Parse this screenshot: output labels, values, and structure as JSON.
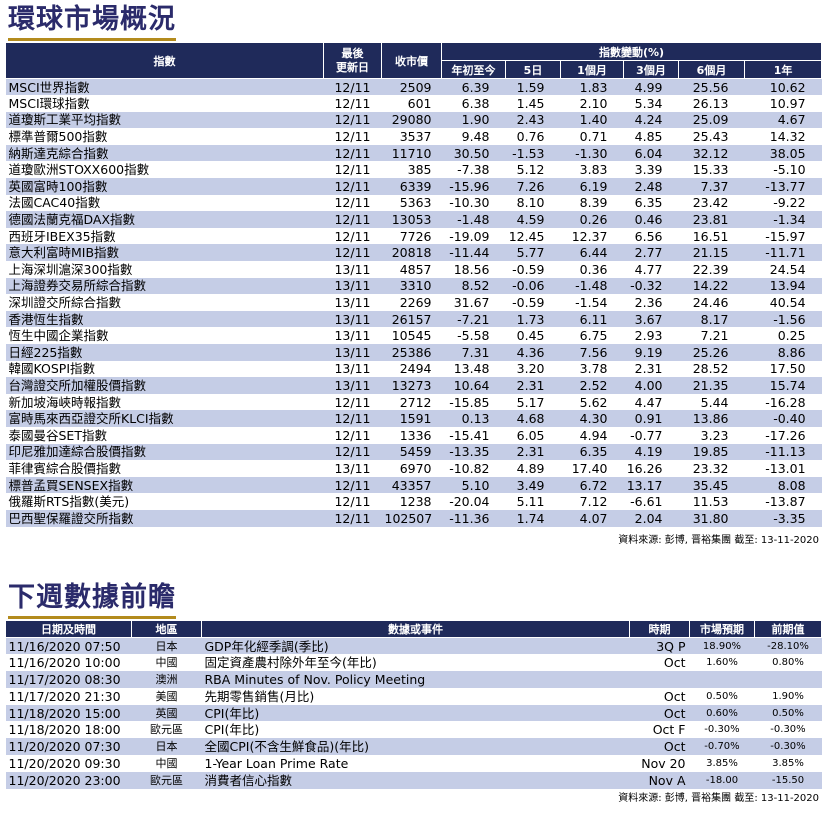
{
  "section1": {
    "title": "環球市場概況",
    "headers": {
      "index": "指數",
      "last_update_1": "最後",
      "last_update_2": "更新日",
      "close": "收市價",
      "change_group": "指數變動(%)",
      "ytd": "年初至今",
      "d5": "5日",
      "m1": "1個月",
      "m3": "3個月",
      "m6": "6個月",
      "y1": "1年"
    },
    "rows": [
      {
        "name": "MSCI世界指數",
        "date": "12/11",
        "close": "2509",
        "ytd": "6.39",
        "d5": "1.59",
        "m1": "1.83",
        "m3": "4.99",
        "m6": "25.56",
        "y1": "10.62"
      },
      {
        "name": "MSCI環球指數",
        "date": "12/11",
        "close": "601",
        "ytd": "6.38",
        "d5": "1.45",
        "m1": "2.10",
        "m3": "5.34",
        "m6": "26.13",
        "y1": "10.97"
      },
      {
        "name": "道瓊斯工業平均指數",
        "date": "12/11",
        "close": "29080",
        "ytd": "1.90",
        "d5": "2.43",
        "m1": "1.40",
        "m3": "4.24",
        "m6": "25.09",
        "y1": "4.67"
      },
      {
        "name": "標準普爾500指數",
        "date": "12/11",
        "close": "3537",
        "ytd": "9.48",
        "d5": "0.76",
        "m1": "0.71",
        "m3": "4.85",
        "m6": "25.43",
        "y1": "14.32"
      },
      {
        "name": "納斯達克綜合指數",
        "date": "12/11",
        "close": "11710",
        "ytd": "30.50",
        "d5": "-1.53",
        "m1": "-1.30",
        "m3": "6.04",
        "m6": "32.12",
        "y1": "38.05"
      },
      {
        "name": "道瓊歐洲STOXX600指數",
        "date": "12/11",
        "close": "385",
        "ytd": "-7.38",
        "d5": "5.12",
        "m1": "3.83",
        "m3": "3.39",
        "m6": "15.33",
        "y1": "-5.10"
      },
      {
        "name": "英國富時100指數",
        "date": "12/11",
        "close": "6339",
        "ytd": "-15.96",
        "d5": "7.26",
        "m1": "6.19",
        "m3": "2.48",
        "m6": "7.37",
        "y1": "-13.77"
      },
      {
        "name": "法國CAC40指數",
        "date": "12/11",
        "close": "5363",
        "ytd": "-10.30",
        "d5": "8.10",
        "m1": "8.39",
        "m3": "6.35",
        "m6": "23.42",
        "y1": "-9.22"
      },
      {
        "name": "德國法蘭克福DAX指數",
        "date": "12/11",
        "close": "13053",
        "ytd": "-1.48",
        "d5": "4.59",
        "m1": "0.26",
        "m3": "0.46",
        "m6": "23.81",
        "y1": "-1.34"
      },
      {
        "name": "西班牙IBEX35指數",
        "date": "12/11",
        "close": "7726",
        "ytd": "-19.09",
        "d5": "12.45",
        "m1": "12.37",
        "m3": "6.56",
        "m6": "16.51",
        "y1": "-15.97"
      },
      {
        "name": "意大利富時MIB指數",
        "date": "12/11",
        "close": "20818",
        "ytd": "-11.44",
        "d5": "5.77",
        "m1": "6.44",
        "m3": "2.77",
        "m6": "21.15",
        "y1": "-11.71"
      },
      {
        "name": "上海深圳滬深300指數",
        "date": "13/11",
        "close": "4857",
        "ytd": "18.56",
        "d5": "-0.59",
        "m1": "0.36",
        "m3": "4.77",
        "m6": "22.39",
        "y1": "24.54"
      },
      {
        "name": "上海證券交易所綜合指數",
        "date": "13/11",
        "close": "3310",
        "ytd": "8.52",
        "d5": "-0.06",
        "m1": "-1.48",
        "m3": "-0.32",
        "m6": "14.22",
        "y1": "13.94"
      },
      {
        "name": "深圳證交所綜合指數",
        "date": "13/11",
        "close": "2269",
        "ytd": "31.67",
        "d5": "-0.59",
        "m1": "-1.54",
        "m3": "2.36",
        "m6": "24.46",
        "y1": "40.54"
      },
      {
        "name": "香港恆生指數",
        "date": "13/11",
        "close": "26157",
        "ytd": "-7.21",
        "d5": "1.73",
        "m1": "6.11",
        "m3": "3.67",
        "m6": "8.17",
        "y1": "-1.56"
      },
      {
        "name": "恆生中國企業指數",
        "date": "13/11",
        "close": "10545",
        "ytd": "-5.58",
        "d5": "0.45",
        "m1": "6.75",
        "m3": "2.93",
        "m6": "7.21",
        "y1": "0.25"
      },
      {
        "name": "日經225指數",
        "date": "13/11",
        "close": "25386",
        "ytd": "7.31",
        "d5": "4.36",
        "m1": "7.56",
        "m3": "9.19",
        "m6": "25.26",
        "y1": "8.86"
      },
      {
        "name": "韓國KOSPI指數",
        "date": "13/11",
        "close": "2494",
        "ytd": "13.48",
        "d5": "3.20",
        "m1": "3.78",
        "m3": "2.31",
        "m6": "28.52",
        "y1": "17.50"
      },
      {
        "name": "台灣證交所加權股價指數",
        "date": "13/11",
        "close": "13273",
        "ytd": "10.64",
        "d5": "2.31",
        "m1": "2.52",
        "m3": "4.00",
        "m6": "21.35",
        "y1": "15.74"
      },
      {
        "name": "新加坡海峽時報指數",
        "date": "12/11",
        "close": "2712",
        "ytd": "-15.85",
        "d5": "5.17",
        "m1": "5.62",
        "m3": "4.47",
        "m6": "5.44",
        "y1": "-16.28"
      },
      {
        "name": "富時馬來西亞證交所KLCI指數",
        "date": "12/11",
        "close": "1591",
        "ytd": "0.13",
        "d5": "4.68",
        "m1": "4.30",
        "m3": "0.91",
        "m6": "13.86",
        "y1": "-0.40"
      },
      {
        "name": "泰國曼谷SET指數",
        "date": "12/11",
        "close": "1336",
        "ytd": "-15.41",
        "d5": "6.05",
        "m1": "4.94",
        "m3": "-0.77",
        "m6": "3.23",
        "y1": "-17.26"
      },
      {
        "name": "印尼雅加達綜合股價指數",
        "date": "12/11",
        "close": "5459",
        "ytd": "-13.35",
        "d5": "2.31",
        "m1": "6.35",
        "m3": "4.19",
        "m6": "19.85",
        "y1": "-11.13"
      },
      {
        "name": "菲律賓綜合股價指數",
        "date": "13/11",
        "close": "6970",
        "ytd": "-10.82",
        "d5": "4.89",
        "m1": "17.40",
        "m3": "16.26",
        "m6": "23.32",
        "y1": "-13.01"
      },
      {
        "name": "標普孟買SENSEX指數",
        "date": "12/11",
        "close": "43357",
        "ytd": "5.10",
        "d5": "3.49",
        "m1": "6.72",
        "m3": "13.17",
        "m6": "35.45",
        "y1": "8.08"
      },
      {
        "name": "俄羅斯RTS指數(美元)",
        "date": "12/11",
        "close": "1238",
        "ytd": "-20.04",
        "d5": "5.11",
        "m1": "7.12",
        "m3": "-6.61",
        "m6": "11.53",
        "y1": "-13.87"
      },
      {
        "name": "巴西聖保羅證交所指數",
        "date": "12/11",
        "close": "102507",
        "ytd": "-11.36",
        "d5": "1.74",
        "m1": "4.07",
        "m3": "2.04",
        "m6": "31.80",
        "y1": "-3.35"
      }
    ],
    "source": "資料來源: 彭博, 晋裕集團 截至: 13-11-2020"
  },
  "section2": {
    "title": "下週數據前瞻",
    "headers": {
      "datetime": "日期及時間",
      "region": "地區",
      "event": "數據或事件",
      "period": "時期",
      "forecast": "市場預期",
      "previous": "前期值"
    },
    "rows": [
      {
        "datetime": "11/16/2020 07:50",
        "region": "日本",
        "event": "GDP年化經季調(季比)",
        "period": "3Q P",
        "forecast": "18.90%",
        "previous": "-28.10%"
      },
      {
        "datetime": "11/16/2020 10:00",
        "region": "中國",
        "event": "固定資產農村除外年至今(年比)",
        "period": "Oct",
        "forecast": "1.60%",
        "previous": "0.80%"
      },
      {
        "datetime": "11/17/2020 08:30",
        "region": "澳洲",
        "event": "RBA Minutes of Nov. Policy Meeting",
        "period": "",
        "forecast": "",
        "previous": ""
      },
      {
        "datetime": "11/17/2020 21:30",
        "region": "美國",
        "event": "先期零售銷售(月比)",
        "period": "Oct",
        "forecast": "0.50%",
        "previous": "1.90%"
      },
      {
        "datetime": "11/18/2020 15:00",
        "region": "英國",
        "event": "CPI(年比)",
        "period": "Oct",
        "forecast": "0.60%",
        "previous": "0.50%"
      },
      {
        "datetime": "11/18/2020 18:00",
        "region": "歐元區",
        "event": "CPI(年比)",
        "period": "Oct F",
        "forecast": "-0.30%",
        "previous": "-0.30%"
      },
      {
        "datetime": "11/20/2020 07:30",
        "region": "日本",
        "event": "全國CPI(不含生鮮食品)(年比)",
        "period": "Oct",
        "forecast": "-0.70%",
        "previous": "-0.30%"
      },
      {
        "datetime": "11/20/2020 09:30",
        "region": "中國",
        "event": "1-Year Loan Prime Rate",
        "period": "Nov 20",
        "forecast": "3.85%",
        "previous": "3.85%"
      },
      {
        "datetime": "11/20/2020 23:00",
        "region": "歐元區",
        "event": "消費者信心指數",
        "period": "Nov A",
        "forecast": "-18.00",
        "previous": "-15.50"
      }
    ],
    "source": "資料來源: 彭博, 晋裕集團 截至: 13-11-2020"
  }
}
